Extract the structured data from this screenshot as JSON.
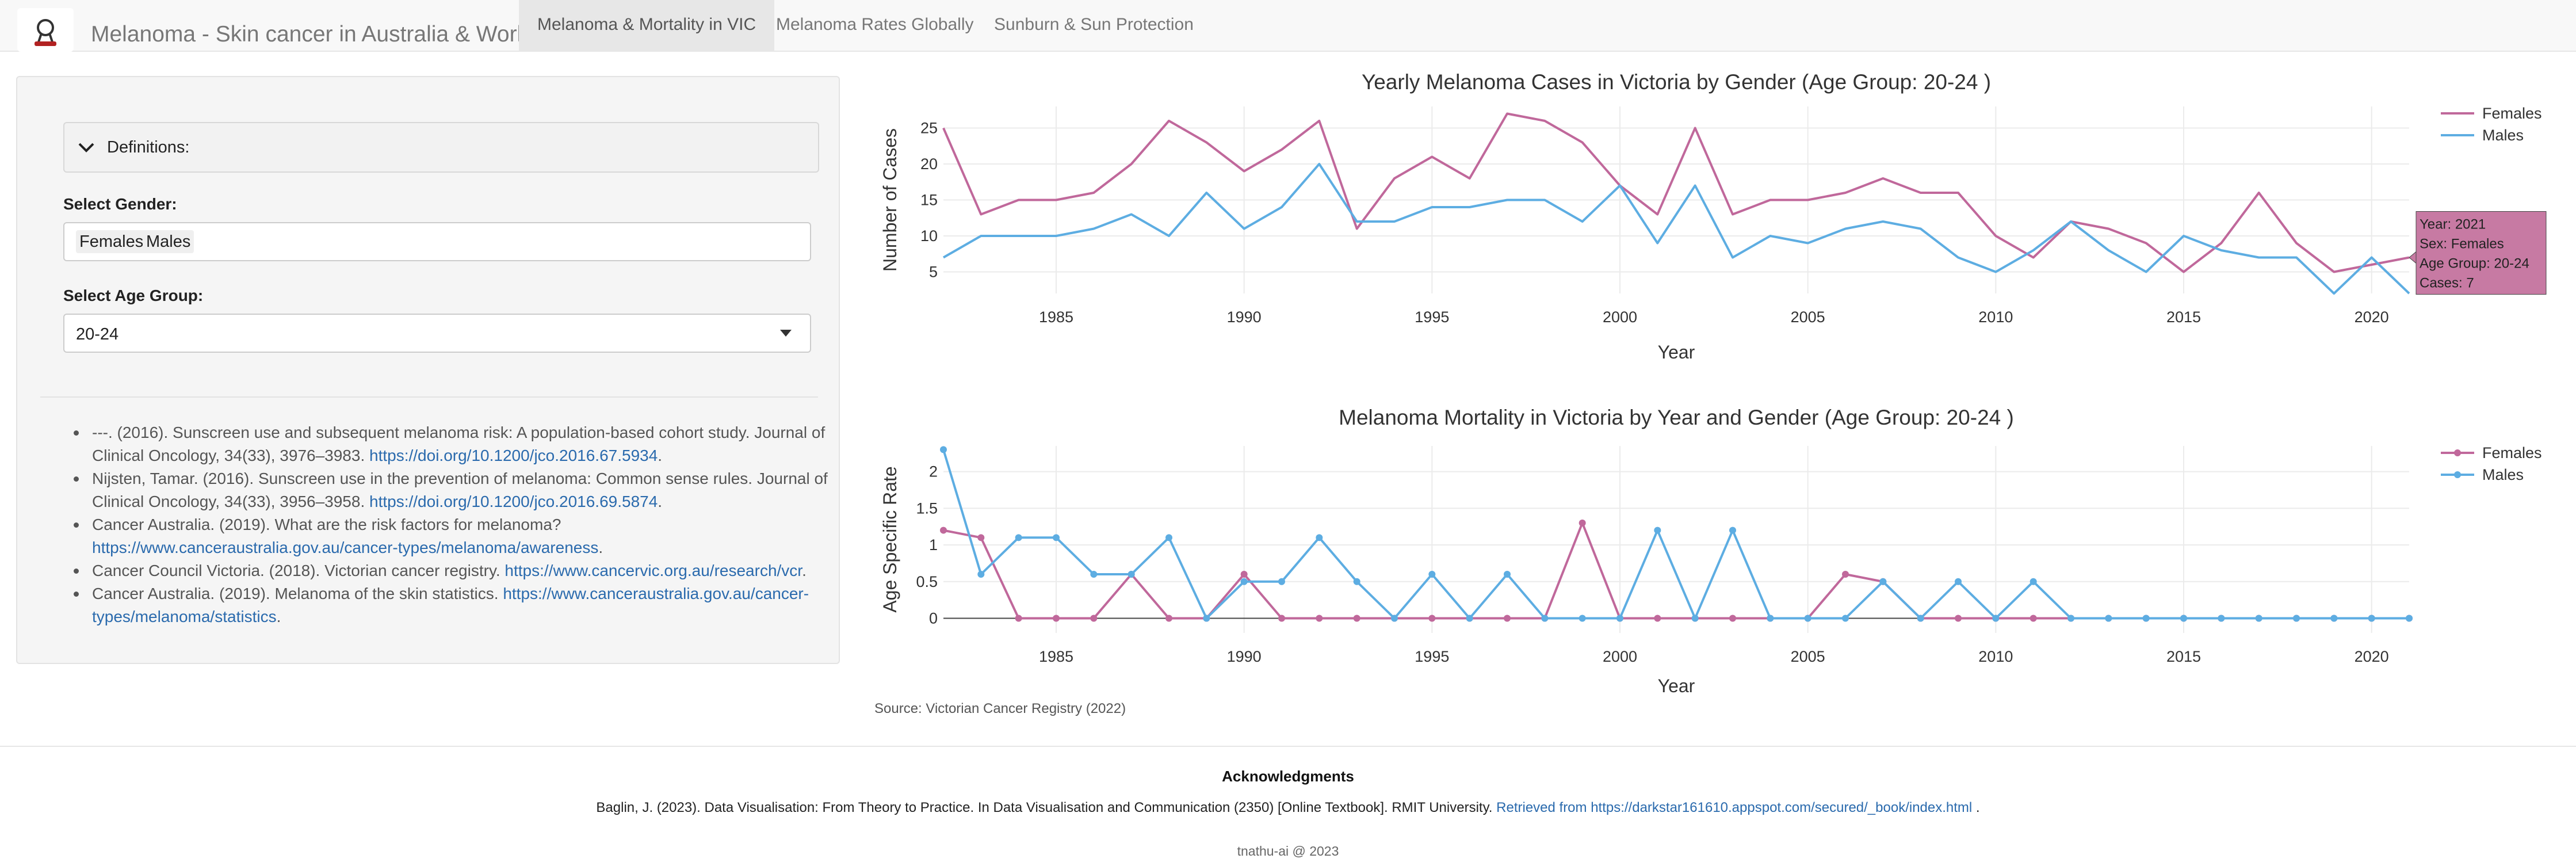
{
  "app": {
    "logo_icon": "skin-cancer-ribbon-icon",
    "title": "Melanoma - Skin cancer in Australia & World"
  },
  "nav": {
    "tabs": [
      {
        "label": "Melanoma & Mortality in VIC",
        "active": true
      },
      {
        "label": "Melanoma Rates Globally",
        "active": false
      },
      {
        "label": "Sunburn & Sun Protection",
        "active": false
      }
    ]
  },
  "sidebar": {
    "definitions_label": "Definitions:",
    "gender_label": "Select Gender:",
    "gender_values": [
      "Females",
      "Males"
    ],
    "age_label": "Select Age Group:",
    "age_value": "20-24",
    "references": [
      {
        "text": "---. (2016). Sunscreen use and subsequent melanoma risk: A population-based cohort study. Journal of Clinical Oncology, 34(33), 3976–3983. ",
        "link": "https://doi.org/10.1200/jco.2016.67.5934",
        "suffix": "."
      },
      {
        "text": "Nijsten, Tamar. (2016). Sunscreen use in the prevention of melanoma: Common sense rules. Journal of Clinical Oncology, 34(33), 3956–3958. ",
        "link": "https://doi.org/10.1200/jco.2016.69.5874",
        "suffix": "."
      },
      {
        "text": "Cancer Australia. (2019). What are the risk factors for melanoma? ",
        "link": "https://www.canceraustralia.gov.au/cancer-types/melanoma/awareness",
        "suffix": "."
      },
      {
        "text": "Cancer Council Victoria. (2018). Victorian cancer registry. ",
        "link": "https://www.cancervic.org.au/research/vcr",
        "suffix": "."
      },
      {
        "text": "Cancer Australia. (2019). Melanoma of the skin statistics. ",
        "link": "https://www.canceraustralia.gov.au/cancer-types/melanoma/statistics",
        "suffix": "."
      }
    ]
  },
  "source_note": "Source: Victorian Cancer Registry (2022)",
  "footer": {
    "ack_title": "Acknowledgments",
    "ack_text": "Baglin, J. (2023). Data Visualisation: From Theory to Practice. In Data Visualisation and Communication (2350) [Online Textbook]. RMIT University. ",
    "ack_link": "Retrieved from https://darkstar161610.appspot.com/secured/_book/index.html",
    "ack_suffix": " .",
    "copyright": "tnathu-ai @ 2023"
  },
  "colors": {
    "females": "#c0689b",
    "males": "#5dade2",
    "tooltip_bg": "#c77aa3"
  },
  "chart_data": [
    {
      "type": "line",
      "title": "Yearly Melanoma Cases in Victoria by Gender (Age Group: 20-24 )",
      "xlabel": "Year",
      "ylabel": "Number of Cases",
      "xlim": [
        1982,
        2021
      ],
      "ylim": [
        2,
        28
      ],
      "xticks": [
        1985,
        1990,
        1995,
        2000,
        2005,
        2010,
        2015,
        2020
      ],
      "yticks": [
        5,
        10,
        15,
        20,
        25
      ],
      "legend": "top-right",
      "markers": false,
      "x": [
        1982,
        1983,
        1984,
        1985,
        1986,
        1987,
        1988,
        1989,
        1990,
        1991,
        1992,
        1993,
        1994,
        1995,
        1996,
        1997,
        1998,
        1999,
        2000,
        2001,
        2002,
        2003,
        2004,
        2005,
        2006,
        2007,
        2008,
        2009,
        2010,
        2011,
        2012,
        2013,
        2014,
        2015,
        2016,
        2017,
        2018,
        2019,
        2020,
        2021
      ],
      "series": [
        {
          "name": "Females",
          "values": [
            25,
            13,
            15,
            15,
            16,
            20,
            26,
            23,
            19,
            22,
            26,
            11,
            18,
            21,
            18,
            27,
            26,
            23,
            17,
            13,
            25,
            13,
            15,
            15,
            16,
            18,
            16,
            16,
            10,
            7,
            12,
            11,
            9,
            5,
            9,
            16,
            9,
            5,
            6,
            7
          ]
        },
        {
          "name": "Males",
          "values": [
            7,
            10,
            10,
            10,
            11,
            13,
            10,
            16,
            11,
            14,
            20,
            12,
            12,
            14,
            14,
            15,
            15,
            12,
            17,
            9,
            17,
            7,
            10,
            9,
            11,
            12,
            11,
            7,
            5,
            8,
            12,
            8,
            5,
            10,
            8,
            7,
            7,
            2,
            7,
            2
          ]
        }
      ],
      "tooltip": {
        "lines": [
          "Year: 2021",
          "Sex: Females",
          "Age Group: 20-24",
          "Cases: 7"
        ]
      }
    },
    {
      "type": "line",
      "title": "Melanoma Mortality in Victoria by Year and Gender (Age Group: 20-24 )",
      "xlabel": "Year",
      "ylabel": "Age Specific Rate",
      "xlim": [
        1982,
        2021
      ],
      "ylim": [
        -0.2,
        2.35
      ],
      "xticks": [
        1985,
        1990,
        1995,
        2000,
        2005,
        2010,
        2015,
        2020
      ],
      "yticks": [
        0,
        0.5,
        1,
        1.5,
        2
      ],
      "legend": "top-right",
      "markers": true,
      "x": [
        1982,
        1983,
        1984,
        1985,
        1986,
        1987,
        1988,
        1989,
        1990,
        1991,
        1992,
        1993,
        1994,
        1995,
        1996,
        1997,
        1998,
        1999,
        2000,
        2001,
        2002,
        2003,
        2004,
        2005,
        2006,
        2007,
        2008,
        2009,
        2010,
        2011,
        2012,
        2013,
        2014,
        2015,
        2016,
        2017,
        2018,
        2019,
        2020,
        2021
      ],
      "series": [
        {
          "name": "Females",
          "values": [
            1.2,
            1.1,
            0,
            0,
            0,
            0.6,
            0,
            0,
            0.6,
            0,
            0,
            0,
            0,
            0,
            0,
            0,
            0,
            1.3,
            0,
            0,
            0,
            0,
            0,
            0,
            0.6,
            0.5,
            0,
            0,
            0,
            0,
            0,
            0,
            0,
            0,
            0,
            0,
            0,
            0,
            0,
            0
          ]
        },
        {
          "name": "Males",
          "values": [
            2.3,
            0.6,
            1.1,
            1.1,
            0.6,
            0.6,
            1.1,
            0,
            0.5,
            0.5,
            1.1,
            0.5,
            0,
            0.6,
            0,
            0.6,
            0,
            0,
            0,
            1.2,
            0,
            1.2,
            0,
            0,
            0,
            0.5,
            0,
            0.5,
            0,
            0.5,
            0,
            0,
            0,
            0,
            0,
            0,
            0,
            0,
            0,
            0
          ]
        }
      ]
    }
  ]
}
